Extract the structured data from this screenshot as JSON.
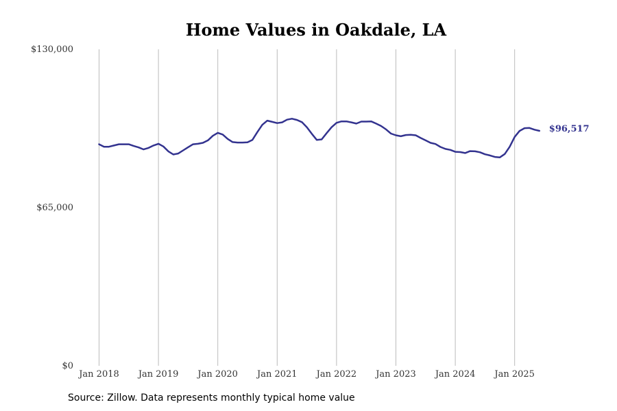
{
  "chart_data": {
    "type": "line",
    "title": "Home Values in Oakdale, LA",
    "xlabel": "",
    "ylabel": "",
    "ylim": [
      0,
      130000
    ],
    "yticks": [
      0,
      65000,
      130000
    ],
    "ytick_labels": [
      "$0",
      "$65,000",
      "$130,000"
    ],
    "xlim": [
      "2018-01",
      "2025-06"
    ],
    "xtick_labels": [
      "Jan 2018",
      "Jan 2019",
      "Jan 2020",
      "Jan 2021",
      "Jan 2022",
      "Jan 2023",
      "Jan 2024",
      "Jan 2025"
    ],
    "grid": "vertical",
    "line_color": "#33338f",
    "last_value_label": "$96,517",
    "series": [
      {
        "x": [
          "2018-01",
          "2018-02",
          "2018-03",
          "2018-04",
          "2018-05",
          "2018-06",
          "2018-07",
          "2018-08",
          "2018-09",
          "2018-10",
          "2018-11",
          "2018-12",
          "2019-01",
          "2019-02",
          "2019-03",
          "2019-04",
          "2019-05",
          "2019-06",
          "2019-07",
          "2019-08",
          "2019-09",
          "2019-10",
          "2019-11",
          "2019-12",
          "2020-01",
          "2020-02",
          "2020-03",
          "2020-04",
          "2020-05",
          "2020-06",
          "2020-07",
          "2020-08",
          "2020-09",
          "2020-10",
          "2020-11",
          "2020-12",
          "2021-01",
          "2021-02",
          "2021-03",
          "2021-04",
          "2021-05",
          "2021-06",
          "2021-07",
          "2021-08",
          "2021-09",
          "2021-10",
          "2021-11",
          "2021-12",
          "2022-01",
          "2022-02",
          "2022-03",
          "2022-04",
          "2022-05",
          "2022-06",
          "2022-07",
          "2022-08",
          "2022-09",
          "2022-10",
          "2022-11",
          "2022-12",
          "2023-01",
          "2023-02",
          "2023-03",
          "2023-04",
          "2023-05",
          "2023-06",
          "2023-07",
          "2023-08",
          "2023-09",
          "2023-10",
          "2023-11",
          "2023-12",
          "2024-01",
          "2024-02",
          "2024-03",
          "2024-04",
          "2024-05",
          "2024-06",
          "2024-07",
          "2024-08",
          "2024-09",
          "2024-10",
          "2024-11",
          "2024-12",
          "2025-01",
          "2025-02",
          "2025-03",
          "2025-04",
          "2025-05",
          "2025-06"
        ],
        "y": [
          91000,
          90000,
          90000,
          90500,
          91000,
          91000,
          91000,
          90300,
          89700,
          88900,
          89500,
          90500,
          91200,
          90100,
          88100,
          86800,
          87200,
          88500,
          89800,
          91000,
          91200,
          91600,
          92600,
          94500,
          95700,
          95000,
          93200,
          91900,
          91700,
          91700,
          91800,
          92800,
          96000,
          99000,
          100700,
          100200,
          99700,
          100000,
          101100,
          101500,
          101000,
          100100,
          98000,
          95300,
          92800,
          93000,
          95600,
          98000,
          99800,
          100400,
          100400,
          100000,
          99500,
          100300,
          100300,
          100400,
          99500,
          98500,
          97100,
          95400,
          94700,
          94300,
          94800,
          94900,
          94700,
          93600,
          92600,
          91600,
          91100,
          89900,
          89100,
          88700,
          87900,
          87800,
          87400,
          88200,
          88100,
          87700,
          86900,
          86400,
          85800,
          85600,
          87000,
          90000,
          94000,
          96500,
          97600,
          97700,
          97000,
          96517
        ]
      }
    ]
  },
  "source_text": "Source: Zillow. Data represents monthly typical home value"
}
